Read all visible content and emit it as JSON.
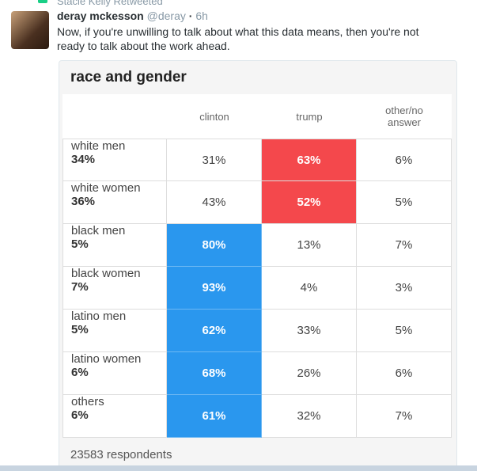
{
  "tweet": {
    "retweeted_by": "Stacie Kelly Retweeted",
    "author": "deray mckesson",
    "handle": "@deray",
    "time": "6h",
    "text": "Now, if you're unwilling to talk about what this data means, then you're not ready to talk about the work ahead."
  },
  "table": {
    "title": "race and gender",
    "columns": [
      "clinton",
      "trump",
      "other/no answer"
    ],
    "rows": [
      {
        "group": "white men",
        "share": "34%",
        "values": [
          "31%",
          "63%",
          "6%"
        ]
      },
      {
        "group": "white women",
        "share": "36%",
        "values": [
          "43%",
          "52%",
          "5%"
        ]
      },
      {
        "group": "black men",
        "share": "5%",
        "values": [
          "80%",
          "13%",
          "7%"
        ]
      },
      {
        "group": "black women",
        "share": "7%",
        "values": [
          "93%",
          "4%",
          "3%"
        ]
      },
      {
        "group": "latino men",
        "share": "5%",
        "values": [
          "62%",
          "33%",
          "5%"
        ]
      },
      {
        "group": "latino women",
        "share": "6%",
        "values": [
          "68%",
          "26%",
          "6%"
        ]
      },
      {
        "group": "others",
        "share": "6%",
        "values": [
          "61%",
          "32%",
          "7%"
        ]
      }
    ],
    "footer": "23583 respondents"
  }
}
